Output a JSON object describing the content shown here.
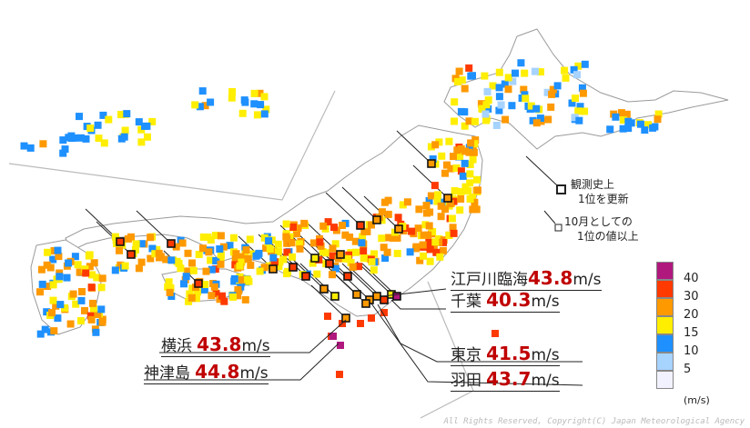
{
  "legend": {
    "unit": "(m/s)",
    "bins": [
      {
        "label": "40",
        "color": "#b0187e"
      },
      {
        "label": "30",
        "color": "#ff3a00"
      },
      {
        "label": "20",
        "color": "#ff9900"
      },
      {
        "label": "15",
        "color": "#ffee00"
      },
      {
        "label": "10",
        "color": "#1e90ff"
      },
      {
        "label": "5",
        "color": "#a7d3ff"
      },
      {
        "label": "",
        "color": "#f2f2ff"
      }
    ]
  },
  "keys": {
    "record_line1": "観測史上",
    "record_line2": "1位を更新",
    "october_line1": "10月としての",
    "october_line2": "1位の値以上"
  },
  "callouts": {
    "edogawa": {
      "name": "江戸川臨海",
      "value": "43.8",
      "unit": "m/s"
    },
    "chiba": {
      "name": "千葉",
      "value": "40.3",
      "unit": "m/s"
    },
    "tokyo": {
      "name": "東京",
      "value": "41.5",
      "unit": "m/s"
    },
    "haneda": {
      "name": "羽田",
      "value": "43.7",
      "unit": "m/s"
    },
    "yokohama": {
      "name": "横浜",
      "value": "43.8",
      "unit": "m/s"
    },
    "kozushima": {
      "name": "神津島",
      "value": "44.8",
      "unit": "m/s"
    }
  },
  "copyright": "All Rights Reserved, Copyright(C) Japan Meteorological Agency"
}
